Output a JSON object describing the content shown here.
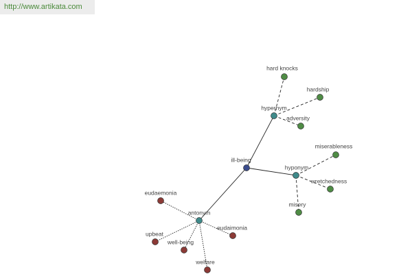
{
  "url": "http://www.artikata.com",
  "nodes": [
    {
      "label": "ill-being"
    },
    {
      "label": "hypernym"
    },
    {
      "label": "hyponym"
    },
    {
      "label": "antonym"
    },
    {
      "label": "hard knocks"
    },
    {
      "label": "hardship"
    },
    {
      "label": "adversity"
    },
    {
      "label": "miserableness"
    },
    {
      "label": "wretchedness"
    },
    {
      "label": "misery"
    },
    {
      "label": "eudaemonia"
    },
    {
      "label": "eudaimonia"
    },
    {
      "label": "upbeat"
    },
    {
      "label": "well-being"
    },
    {
      "label": "welfare"
    }
  ]
}
